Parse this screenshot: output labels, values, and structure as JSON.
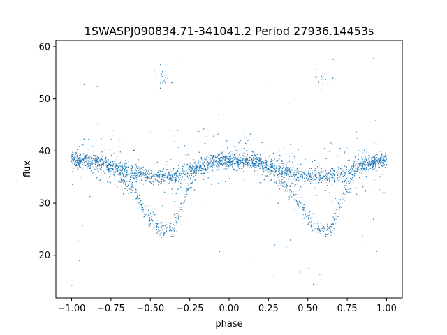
{
  "chart_data": {
    "type": "scatter",
    "title": "1SWASPJ090834.71-341041.2 Period 27936.14453s",
    "xlabel": "phase",
    "ylabel": "flux",
    "xlim": [
      -1.1,
      1.1
    ],
    "ylim": [
      11.8,
      61.2
    ],
    "x_ticks": [
      -1.0,
      -0.75,
      -0.5,
      -0.25,
      0.0,
      0.25,
      0.5,
      0.75,
      1.0
    ],
    "x_tick_labels": [
      "−1.00",
      "−0.75",
      "−0.50",
      "−0.25",
      "0.00",
      "0.25",
      "0.50",
      "0.75",
      "1.00"
    ],
    "y_ticks": [
      20,
      30,
      40,
      50,
      60
    ],
    "y_tick_labels": [
      "20",
      "30",
      "40",
      "50",
      "60"
    ],
    "grid": false,
    "legend": "none",
    "marker_color": "#1f77b4",
    "series": [
      {
        "description_points": "phase-folded light curve; points duplicated over phase -1..1",
        "envelope": {
          "x": [
            -1.0,
            -0.9,
            -0.8,
            -0.7,
            -0.6,
            -0.55,
            -0.5,
            -0.45,
            -0.4,
            -0.35,
            -0.3,
            -0.25,
            -0.2,
            -0.1,
            0.0,
            0.1,
            0.2,
            0.3,
            0.4,
            0.45,
            0.5,
            0.55,
            0.6,
            0.65,
            0.7,
            0.75,
            0.8,
            0.9,
            1.0
          ],
          "y_upper_branch": [
            38.3,
            38.2,
            37.7,
            36.9,
            35.9,
            35.4,
            35.1,
            35.0,
            35.0,
            35.2,
            35.6,
            36.2,
            36.9,
            37.8,
            38.2,
            38.2,
            37.7,
            36.9,
            35.9,
            35.4,
            35.1,
            35.0,
            35.0,
            35.2,
            35.6,
            36.2,
            36.9,
            37.8,
            38.3
          ],
          "y_eclipse_branch": [
            38.3,
            38.2,
            37.4,
            35.5,
            32.0,
            29.5,
            27.0,
            25.0,
            24.8,
            25.0,
            29.0,
            33.8,
            36.4,
            37.9,
            38.2,
            38.2,
            37.4,
            35.5,
            32.0,
            29.5,
            27.0,
            25.0,
            24.8,
            25.0,
            29.0,
            33.8,
            36.4,
            37.9,
            38.3
          ]
        }
      }
    ],
    "annotations": []
  }
}
